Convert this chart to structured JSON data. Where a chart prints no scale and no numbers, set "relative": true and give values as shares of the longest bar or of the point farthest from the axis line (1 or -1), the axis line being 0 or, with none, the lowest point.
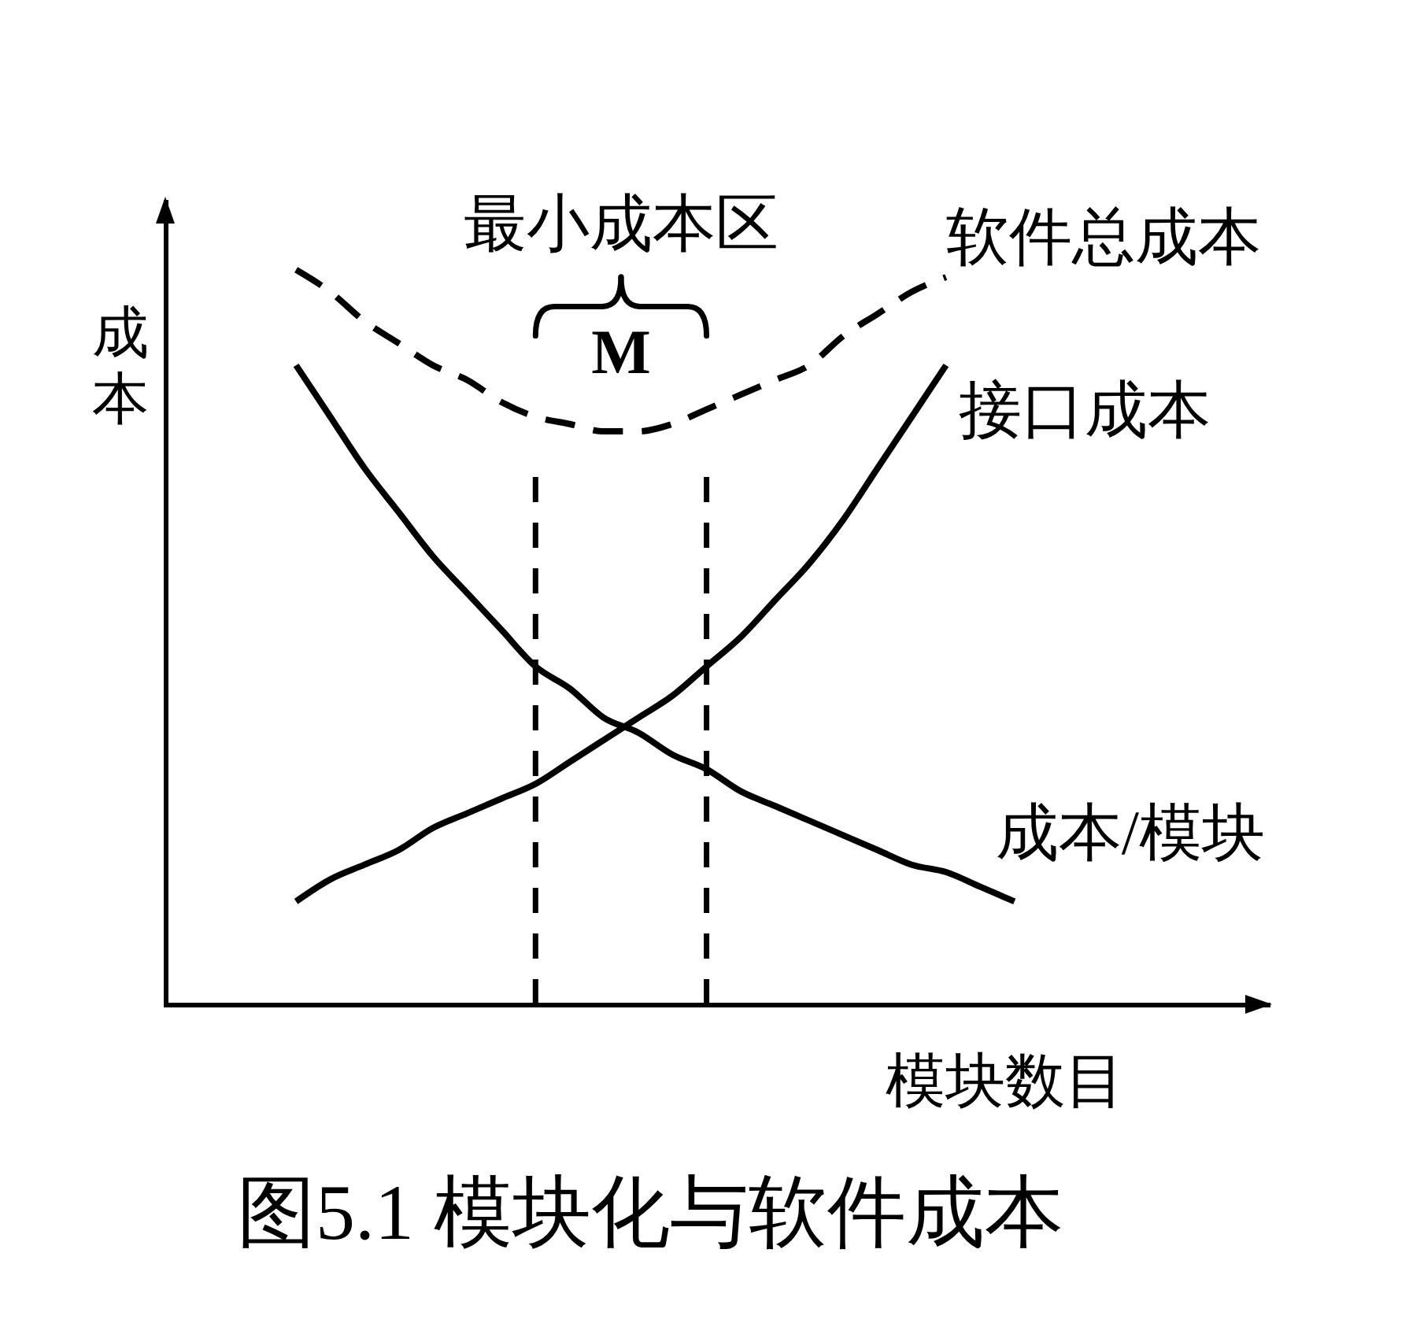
{
  "chart_data": {
    "type": "line",
    "title": "图5.1 模块化与软件成本",
    "xlabel": "模块数目",
    "ylabel": "成本",
    "relative": true,
    "tick_labels": false,
    "categories": [
      null,
      null,
      null,
      null,
      null,
      null,
      null,
      null,
      null,
      null,
      null,
      null,
      null,
      null,
      null,
      null,
      null,
      null,
      null,
      null,
      null,
      null
    ],
    "series": [
      {
        "name": "软件总成本",
        "color": "#000000",
        "line_style": "dashed",
        "values": [
          1.0,
          0.97,
          0.93,
          0.9,
          0.87,
          0.85,
          0.82,
          0.8,
          0.79,
          0.78,
          0.78,
          0.79,
          0.81,
          0.83,
          0.85,
          0.87,
          0.91,
          0.94,
          0.97,
          0.99,
          null,
          null
        ]
      },
      {
        "name": "接口成本",
        "color": "#000000",
        "values": [
          0.14,
          0.17,
          0.19,
          0.21,
          0.24,
          0.26,
          0.28,
          0.3,
          0.33,
          0.36,
          0.39,
          0.42,
          0.46,
          0.5,
          0.55,
          0.6,
          0.66,
          0.73,
          0.8,
          0.87,
          null,
          null
        ]
      },
      {
        "name": "成本/模块",
        "color": "#000000",
        "values": [
          0.87,
          0.8,
          0.73,
          0.67,
          0.61,
          0.56,
          0.51,
          0.46,
          0.43,
          0.39,
          0.37,
          0.34,
          0.32,
          0.29,
          0.27,
          0.25,
          0.23,
          0.21,
          0.19,
          0.18,
          0.16,
          0.14
        ]
      }
    ],
    "annotations": [
      "最小成本区",
      "M"
    ]
  }
}
